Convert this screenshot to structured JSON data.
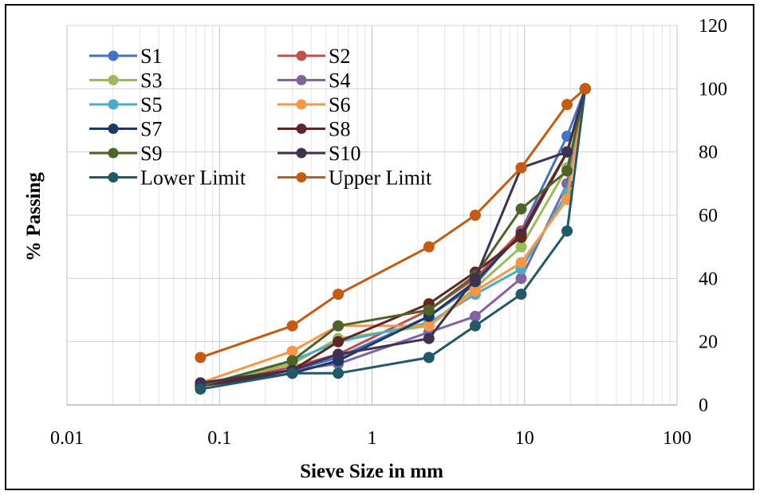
{
  "chart_data": {
    "type": "scatter",
    "x_scale": "log",
    "xlabel": "Sieve Size in mm",
    "ylabel": "% Passing",
    "xlim": [
      0.01,
      100
    ],
    "ylim": [
      0,
      120
    ],
    "x_ticks": [
      "0.01",
      "0.1",
      "1",
      "10",
      "100"
    ],
    "y_ticks": [
      "0",
      "20",
      "40",
      "60",
      "80",
      "100",
      "120"
    ],
    "y_axis_position": "right",
    "grid": true,
    "legend_position": "top-left",
    "x": [
      0.075,
      0.3,
      0.6,
      2.36,
      4.75,
      9.5,
      19,
      25
    ],
    "series": [
      {
        "name": "S1",
        "color": "#4472C4",
        "values": [
          6,
          11,
          15,
          28,
          38,
          55,
          85,
          100
        ]
      },
      {
        "name": "S2",
        "color": "#C0504D",
        "values": [
          6,
          12,
          16,
          30,
          40,
          55,
          80,
          100
        ]
      },
      {
        "name": "S3",
        "color": "#9BBB59",
        "values": [
          6,
          13,
          21,
          25,
          37,
          50,
          75,
          100
        ]
      },
      {
        "name": "S4",
        "color": "#8064A2",
        "values": [
          6,
          11,
          13,
          23,
          28,
          40,
          70,
          100
        ]
      },
      {
        "name": "S5",
        "color": "#4BACC6",
        "values": [
          6,
          14,
          20,
          26,
          35,
          43,
          67,
          100
        ]
      },
      {
        "name": "S6",
        "color": "#F79646",
        "values": [
          7,
          17,
          25,
          25,
          36,
          45,
          65,
          100
        ]
      },
      {
        "name": "S7",
        "color": "#1F3864",
        "values": [
          6,
          10,
          14,
          28,
          39,
          54,
          80,
          100
        ]
      },
      {
        "name": "S8",
        "color": "#632523",
        "values": [
          6,
          11,
          20,
          32,
          42,
          53,
          80,
          100
        ]
      },
      {
        "name": "S9",
        "color": "#4F6228",
        "values": [
          6,
          14,
          25,
          30,
          41,
          62,
          74,
          100
        ]
      },
      {
        "name": "S10",
        "color": "#403151",
        "values": [
          7,
          11,
          16,
          21,
          40,
          75,
          80,
          100
        ]
      },
      {
        "name": "Lower Limit",
        "color": "#215968",
        "values": [
          5,
          10,
          10,
          15,
          25,
          35,
          55,
          100
        ]
      },
      {
        "name": "Upper Limit",
        "color": "#C55A11",
        "values": [
          15,
          25,
          35,
          50,
          60,
          75,
          95,
          100
        ]
      }
    ]
  }
}
